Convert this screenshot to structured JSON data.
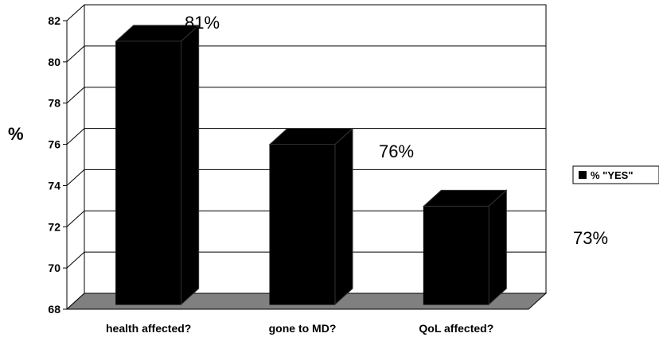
{
  "chart_data": {
    "type": "bar",
    "categories": [
      "health affected?",
      "gone to MD?",
      "QoL affected?"
    ],
    "series": [
      {
        "name": "% \"YES\"",
        "values": [
          81,
          76,
          73
        ],
        "color": "#000000"
      }
    ],
    "data_labels": [
      "81%",
      "76%",
      "73%"
    ],
    "ylabel": "%",
    "xlabel": "",
    "ylim": [
      68,
      82
    ],
    "yticks": [
      68,
      70,
      72,
      74,
      76,
      78,
      80,
      82
    ],
    "grid": true,
    "legend": "right",
    "floor_color": "#808080"
  }
}
